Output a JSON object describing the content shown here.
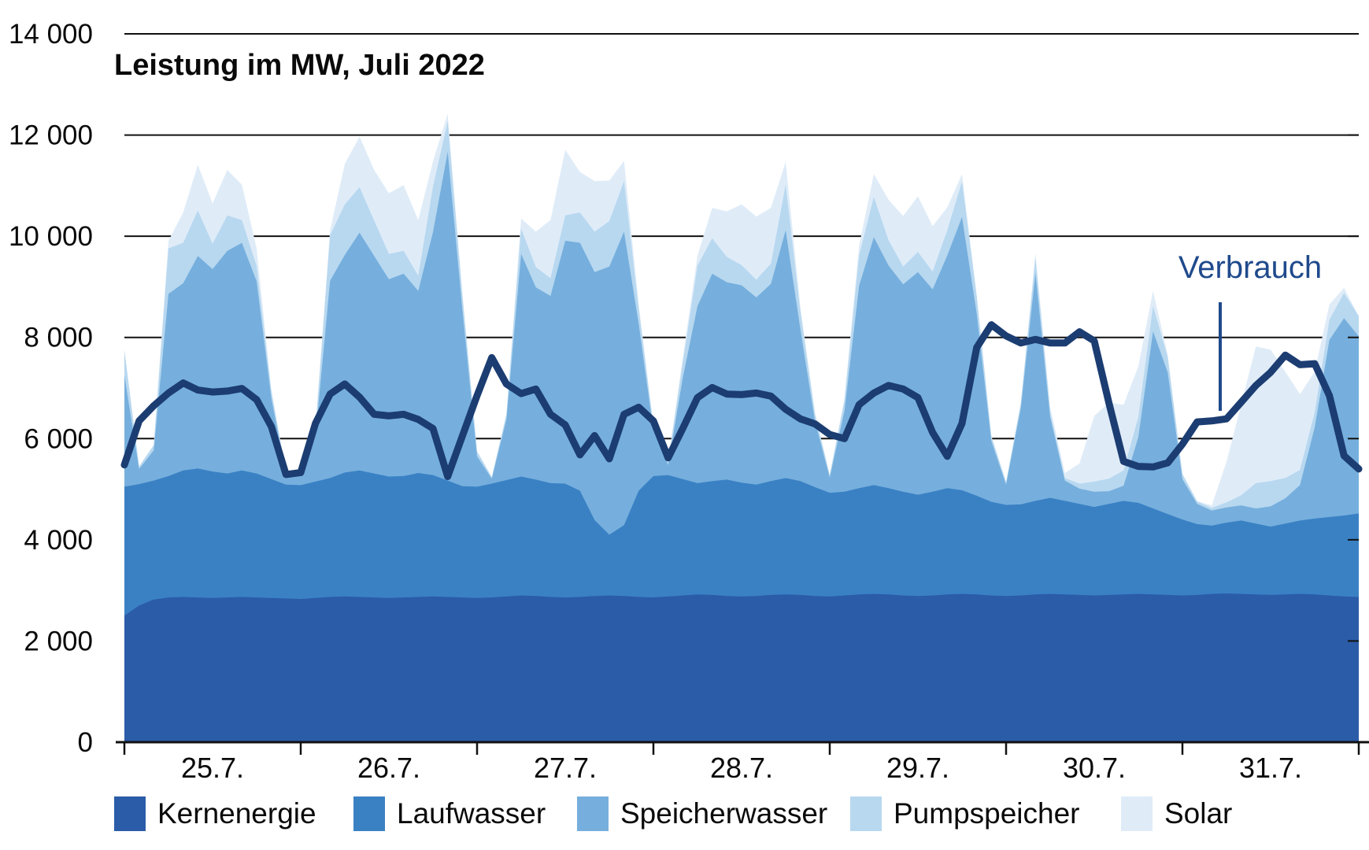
{
  "title": "Leistung im MW, Juli 2022",
  "annotation": {
    "label": "Verbrauch",
    "color": "#1f4a8c"
  },
  "chart_data": {
    "type": "area",
    "stacked": true,
    "grid": true,
    "title": "Leistung im MW, Juli 2022",
    "unit": "MW",
    "step_hours": 2,
    "total_hours": 168,
    "ylim": [
      0,
      14000
    ],
    "categories": [
      "25.7.",
      "26.7.",
      "27.7.",
      "28.7.",
      "29.7.",
      "30.7.",
      "31.7."
    ],
    "y_ticks": [
      {
        "value": 0,
        "label": "0"
      },
      {
        "value": 2000,
        "label": "2 000"
      },
      {
        "value": 4000,
        "label": "4 000"
      },
      {
        "value": 6000,
        "label": "6 000"
      },
      {
        "value": 8000,
        "label": "8 000"
      },
      {
        "value": 10000,
        "label": "10 000"
      },
      {
        "value": 12000,
        "label": "12 000"
      },
      {
        "value": 14000,
        "label": "14 000"
      }
    ],
    "legend_position": "bottom",
    "series": [
      {
        "name": "Kernenergie",
        "color": "#2b5ca8",
        "values": [
          2500,
          2700,
          2820,
          2860,
          2870,
          2860,
          2850,
          2860,
          2870,
          2860,
          2850,
          2840,
          2830,
          2850,
          2870,
          2880,
          2870,
          2860,
          2850,
          2860,
          2870,
          2880,
          2870,
          2860,
          2850,
          2860,
          2880,
          2900,
          2890,
          2870,
          2860,
          2870,
          2890,
          2900,
          2890,
          2870,
          2860,
          2880,
          2900,
          2920,
          2910,
          2890,
          2880,
          2890,
          2910,
          2920,
          2910,
          2890,
          2880,
          2900,
          2920,
          2930,
          2920,
          2900,
          2890,
          2900,
          2920,
          2930,
          2920,
          2900,
          2890,
          2900,
          2920,
          2930,
          2920,
          2910,
          2900,
          2910,
          2920,
          2930,
          2920,
          2910,
          2900,
          2910,
          2930,
          2940,
          2930,
          2920,
          2910,
          2920,
          2930,
          2920,
          2900,
          2880,
          2870
        ]
      },
      {
        "name": "Laufwasser",
        "color": "#3a81c4",
        "values": [
          2550,
          2400,
          2350,
          2400,
          2500,
          2550,
          2500,
          2450,
          2500,
          2450,
          2350,
          2250,
          2250,
          2300,
          2350,
          2450,
          2500,
          2450,
          2400,
          2400,
          2450,
          2400,
          2300,
          2200,
          2200,
          2250,
          2300,
          2350,
          2300,
          2250,
          2250,
          2100,
          1500,
          1200,
          1400,
          2100,
          2400,
          2400,
          2300,
          2200,
          2250,
          2300,
          2250,
          2200,
          2250,
          2300,
          2250,
          2150,
          2050,
          2050,
          2100,
          2150,
          2100,
          2050,
          2000,
          2050,
          2100,
          2050,
          1950,
          1850,
          1800,
          1800,
          1850,
          1900,
          1850,
          1800,
          1750,
          1800,
          1850,
          1800,
          1700,
          1600,
          1500,
          1400,
          1350,
          1400,
          1450,
          1400,
          1350,
          1400,
          1450,
          1500,
          1550,
          1600,
          1650
        ]
      },
      {
        "name": "Speicherwasser",
        "color": "#76afdd",
        "values": [
          2200,
          300,
          600,
          3600,
          3700,
          4200,
          4000,
          4400,
          4500,
          3800,
          1600,
          200,
          200,
          900,
          3900,
          4300,
          4700,
          4300,
          3900,
          4000,
          3600,
          4800,
          6500,
          3500,
          600,
          100,
          1200,
          4400,
          3800,
          3700,
          4800,
          4900,
          4900,
          5300,
          5800,
          3300,
          900,
          200,
          2000,
          3500,
          4100,
          3900,
          3900,
          3700,
          3900,
          4900,
          3000,
          1300,
          300,
          1600,
          4000,
          4900,
          4400,
          4100,
          4400,
          4000,
          4600,
          5400,
          3600,
          1200,
          400,
          1900,
          4500,
          1600,
          400,
          300,
          300,
          250,
          300,
          1300,
          3500,
          2800,
          800,
          400,
          300,
          300,
          300,
          300,
          400,
          500,
          700,
          1800,
          3500,
          3900,
          3500
        ]
      },
      {
        "name": "Pumpspeicher",
        "color": "#b8d8f0",
        "values": [
          500,
          50,
          100,
          900,
          800,
          900,
          500,
          700,
          450,
          300,
          150,
          50,
          20,
          150,
          900,
          1000,
          900,
          700,
          500,
          450,
          300,
          900,
          600,
          300,
          100,
          30,
          100,
          500,
          400,
          350,
          500,
          600,
          800,
          900,
          1000,
          300,
          100,
          50,
          300,
          800,
          700,
          500,
          400,
          350,
          400,
          900,
          350,
          150,
          50,
          200,
          600,
          800,
          500,
          350,
          400,
          350,
          500,
          700,
          350,
          100,
          50,
          100,
          300,
          100,
          50,
          100,
          200,
          250,
          300,
          400,
          500,
          300,
          100,
          50,
          50,
          100,
          200,
          500,
          500,
          400,
          300,
          300,
          400,
          500,
          400
        ]
      },
      {
        "name": "Solar",
        "color": "#dfecf8",
        "values": [
          0,
          0,
          0,
          150,
          600,
          900,
          800,
          900,
          700,
          350,
          0,
          0,
          0,
          0,
          100,
          800,
          1000,
          1000,
          1200,
          1300,
          1100,
          500,
          150,
          0,
          0,
          0,
          0,
          200,
          700,
          1150,
          1300,
          800,
          1000,
          800,
          400,
          100,
          0,
          30,
          100,
          200,
          600,
          900,
          1200,
          1250,
          1100,
          450,
          100,
          0,
          0,
          50,
          200,
          450,
          800,
          1000,
          1100,
          900,
          450,
          150,
          0,
          0,
          0,
          0,
          100,
          100,
          100,
          400,
          1300,
          1500,
          1300,
          1000,
          300,
          50,
          0,
          0,
          50,
          800,
          1800,
          2700,
          2600,
          2100,
          1500,
          800,
          300,
          100,
          0
        ]
      }
    ],
    "consumption_line": {
      "name": "Verbrauch",
      "color": "#1c3d72",
      "values": [
        5480,
        6350,
        6650,
        6900,
        7100,
        6960,
        6920,
        6940,
        6990,
        6770,
        6240,
        5290,
        5330,
        6300,
        6880,
        7080,
        6820,
        6480,
        6450,
        6480,
        6380,
        6200,
        5250,
        6050,
        6850,
        7600,
        7080,
        6890,
        6980,
        6480,
        6270,
        5680,
        6060,
        5600,
        6480,
        6620,
        6350,
        5620,
        6200,
        6810,
        7010,
        6880,
        6870,
        6900,
        6840,
        6580,
        6390,
        6290,
        6080,
        6000,
        6670,
        6900,
        7050,
        6980,
        6810,
        6120,
        5650,
        6300,
        7800,
        8250,
        8030,
        7890,
        7960,
        7890,
        7890,
        8110,
        7930,
        6700,
        5550,
        5450,
        5440,
        5520,
        5890,
        6330,
        6350,
        6390,
        6720,
        7050,
        7310,
        7650,
        7460,
        7480,
        6850,
        5660,
        5400
      ]
    }
  }
}
